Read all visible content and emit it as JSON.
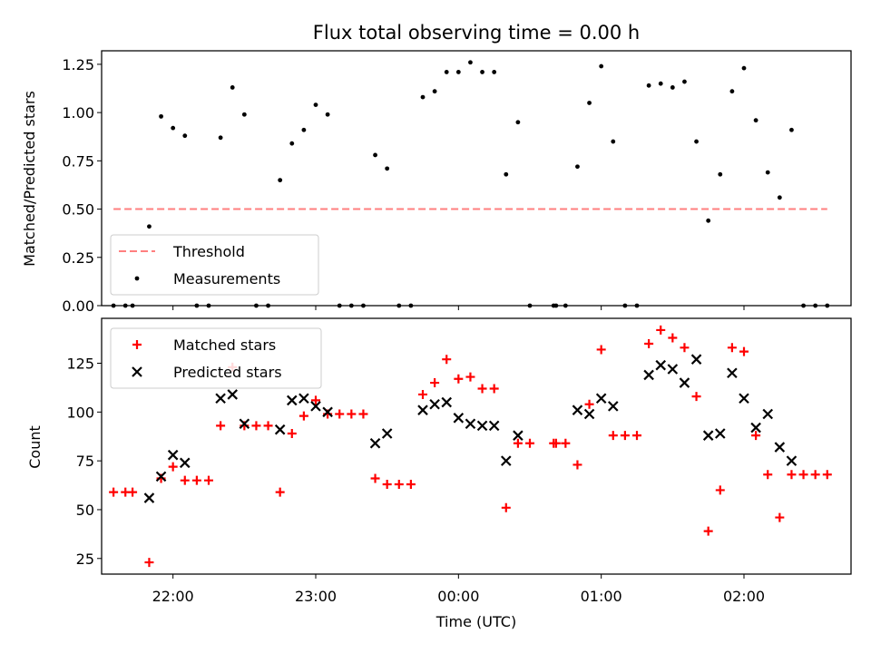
{
  "chart_data": [
    {
      "type": "scatter",
      "title": "Flux total observing time = 0.00 h",
      "ylabel": "Matched/Predicted stars",
      "xlabel": "",
      "xlim": [
        "21:30",
        "02:45"
      ],
      "ylim": [
        0,
        1.32
      ],
      "yticks": [
        0.0,
        0.25,
        0.5,
        0.75,
        1.0,
        1.25
      ],
      "ytick_labels": [
        "0.00",
        "0.25",
        "0.50",
        "0.75",
        "1.00",
        "1.25"
      ],
      "legend_position": "lower-left",
      "grid": false,
      "series": [
        {
          "name": "Threshold",
          "style": "dashed-line",
          "color": "#ff7f7f",
          "x": [
            "21:35",
            "02:35"
          ],
          "y": [
            0.5,
            0.5
          ]
        },
        {
          "name": "Measurements",
          "style": "dot",
          "color": "#000000",
          "points": [
            [
              "21:35",
              0.0
            ],
            [
              "21:40",
              0.0
            ],
            [
              "21:43",
              0.0
            ],
            [
              "21:50",
              0.41
            ],
            [
              "21:55",
              0.98
            ],
            [
              "22:00",
              0.92
            ],
            [
              "22:05",
              0.88
            ],
            [
              "22:10",
              0.0
            ],
            [
              "22:15",
              0.0
            ],
            [
              "22:20",
              0.87
            ],
            [
              "22:25",
              1.13
            ],
            [
              "22:30",
              0.99
            ],
            [
              "22:35",
              0.0
            ],
            [
              "22:40",
              0.0
            ],
            [
              "22:45",
              0.65
            ],
            [
              "22:50",
              0.84
            ],
            [
              "22:55",
              0.91
            ],
            [
              "23:00",
              1.04
            ],
            [
              "23:05",
              0.99
            ],
            [
              "23:10",
              0.0
            ],
            [
              "23:15",
              0.0
            ],
            [
              "23:20",
              0.0
            ],
            [
              "23:25",
              0.78
            ],
            [
              "23:30",
              0.71
            ],
            [
              "23:35",
              0.0
            ],
            [
              "23:40",
              0.0
            ],
            [
              "23:45",
              1.08
            ],
            [
              "23:50",
              1.11
            ],
            [
              "23:55",
              1.21
            ],
            [
              "00:00",
              1.21
            ],
            [
              "00:05",
              1.26
            ],
            [
              "00:10",
              1.21
            ],
            [
              "00:15",
              1.21
            ],
            [
              "00:20",
              0.68
            ],
            [
              "00:25",
              0.95
            ],
            [
              "00:30",
              0.0
            ],
            [
              "00:40",
              0.0
            ],
            [
              "00:41",
              0.0
            ],
            [
              "00:45",
              0.0
            ],
            [
              "00:50",
              0.72
            ],
            [
              "00:55",
              1.05
            ],
            [
              "01:00",
              1.24
            ],
            [
              "01:05",
              0.85
            ],
            [
              "01:10",
              0.0
            ],
            [
              "01:15",
              0.0
            ],
            [
              "01:20",
              1.14
            ],
            [
              "01:25",
              1.15
            ],
            [
              "01:30",
              1.13
            ],
            [
              "01:35",
              1.16
            ],
            [
              "01:40",
              0.85
            ],
            [
              "01:45",
              0.44
            ],
            [
              "01:50",
              0.68
            ],
            [
              "01:55",
              1.11
            ],
            [
              "02:00",
              1.23
            ],
            [
              "02:05",
              0.96
            ],
            [
              "02:10",
              0.69
            ],
            [
              "02:15",
              0.56
            ],
            [
              "02:20",
              0.91
            ],
            [
              "02:25",
              0.0
            ],
            [
              "02:30",
              0.0
            ],
            [
              "02:35",
              0.0
            ]
          ]
        }
      ]
    },
    {
      "type": "scatter",
      "title": "",
      "ylabel": "Count",
      "xlabel": "Time (UTC)",
      "xlim": [
        "21:30",
        "02:45"
      ],
      "xticks": [
        "22:00",
        "23:00",
        "00:00",
        "01:00",
        "02:00"
      ],
      "ylim": [
        17,
        148
      ],
      "yticks": [
        25,
        50,
        75,
        100,
        125
      ],
      "legend_position": "top-left",
      "grid": false,
      "series": [
        {
          "name": "Matched stars",
          "marker": "plus",
          "color": "#ff0000",
          "points": [
            [
              "21:35",
              59
            ],
            [
              "21:40",
              59
            ],
            [
              "21:43",
              59
            ],
            [
              "21:50",
              23
            ],
            [
              "21:55",
              66
            ],
            [
              "22:00",
              72
            ],
            [
              "22:05",
              65
            ],
            [
              "22:10",
              65
            ],
            [
              "22:15",
              65
            ],
            [
              "22:20",
              93
            ],
            [
              "22:25",
              123
            ],
            [
              "22:30",
              93
            ],
            [
              "22:35",
              93
            ],
            [
              "22:40",
              93
            ],
            [
              "22:45",
              59
            ],
            [
              "22:50",
              89
            ],
            [
              "22:55",
              98
            ],
            [
              "23:00",
              106
            ],
            [
              "23:05",
              99
            ],
            [
              "23:10",
              99
            ],
            [
              "23:15",
              99
            ],
            [
              "23:20",
              99
            ],
            [
              "23:25",
              66
            ],
            [
              "23:30",
              63
            ],
            [
              "23:35",
              63
            ],
            [
              "23:40",
              63
            ],
            [
              "23:45",
              109
            ],
            [
              "23:50",
              115
            ],
            [
              "23:55",
              127
            ],
            [
              "00:00",
              117
            ],
            [
              "00:05",
              118
            ],
            [
              "00:10",
              112
            ],
            [
              "00:15",
              112
            ],
            [
              "00:20",
              51
            ],
            [
              "00:25",
              84
            ],
            [
              "00:30",
              84
            ],
            [
              "00:40",
              84
            ],
            [
              "00:41",
              84
            ],
            [
              "00:45",
              84
            ],
            [
              "00:50",
              73
            ],
            [
              "00:55",
              104
            ],
            [
              "01:00",
              132
            ],
            [
              "01:05",
              88
            ],
            [
              "01:10",
              88
            ],
            [
              "01:15",
              88
            ],
            [
              "01:20",
              135
            ],
            [
              "01:25",
              142
            ],
            [
              "01:30",
              138
            ],
            [
              "01:35",
              133
            ],
            [
              "01:40",
              108
            ],
            [
              "01:45",
              39
            ],
            [
              "01:50",
              60
            ],
            [
              "01:55",
              133
            ],
            [
              "02:00",
              131
            ],
            [
              "02:05",
              88
            ],
            [
              "02:10",
              68
            ],
            [
              "02:15",
              46
            ],
            [
              "02:20",
              68
            ],
            [
              "02:25",
              68
            ],
            [
              "02:30",
              68
            ],
            [
              "02:35",
              68
            ]
          ]
        },
        {
          "name": "Predicted stars",
          "marker": "x",
          "color": "#000000",
          "points": [
            [
              "21:50",
              56
            ],
            [
              "21:55",
              67
            ],
            [
              "22:00",
              78
            ],
            [
              "22:05",
              74
            ],
            [
              "22:20",
              107
            ],
            [
              "22:25",
              109
            ],
            [
              "22:30",
              94
            ],
            [
              "22:45",
              91
            ],
            [
              "22:50",
              106
            ],
            [
              "22:55",
              107
            ],
            [
              "23:00",
              103
            ],
            [
              "23:05",
              100
            ],
            [
              "23:25",
              84
            ],
            [
              "23:30",
              89
            ],
            [
              "23:45",
              101
            ],
            [
              "23:50",
              104
            ],
            [
              "23:55",
              105
            ],
            [
              "00:00",
              97
            ],
            [
              "00:05",
              94
            ],
            [
              "00:10",
              93
            ],
            [
              "00:15",
              93
            ],
            [
              "00:20",
              75
            ],
            [
              "00:25",
              88
            ],
            [
              "00:50",
              101
            ],
            [
              "00:55",
              99
            ],
            [
              "01:00",
              107
            ],
            [
              "01:05",
              103
            ],
            [
              "01:20",
              119
            ],
            [
              "01:25",
              124
            ],
            [
              "01:30",
              122
            ],
            [
              "01:35",
              115
            ],
            [
              "01:40",
              127
            ],
            [
              "01:45",
              88
            ],
            [
              "01:50",
              89
            ],
            [
              "01:55",
              120
            ],
            [
              "02:00",
              107
            ],
            [
              "02:05",
              92
            ],
            [
              "02:10",
              99
            ],
            [
              "02:15",
              82
            ],
            [
              "02:20",
              75
            ]
          ]
        }
      ]
    }
  ]
}
